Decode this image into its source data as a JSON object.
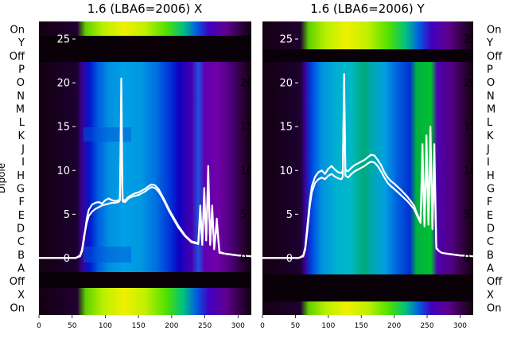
{
  "chart_data": [
    {
      "type": "heatmap",
      "title": "1.6 (LBA6=2006) X",
      "ylabel": "Dipole",
      "row_labels_bottom_to_top": [
        "On",
        "X",
        "Off",
        "A",
        "B",
        "C",
        "D",
        "E",
        "F",
        "G",
        "H",
        "I",
        "J",
        "K",
        "L",
        "M",
        "N",
        "O",
        "P",
        "Off",
        "Y",
        "On"
      ],
      "x_ticks": [
        0,
        50,
        100,
        150,
        200,
        250,
        300
      ],
      "xlim": [
        0,
        320
      ],
      "overlay_y_ticks": [
        0,
        5,
        10,
        15,
        20,
        25
      ],
      "overlay_ylim": [
        -6.5,
        27
      ],
      "overlay_lines": [
        {
          "x": [
            0,
            55,
            62,
            65,
            68,
            72,
            75,
            80,
            85,
            90,
            95,
            100,
            105,
            110,
            115,
            120,
            122,
            124,
            126,
            128,
            130,
            135,
            140,
            145,
            150,
            155,
            160,
            165,
            170,
            175,
            180,
            185,
            190,
            195,
            200,
            210,
            220,
            230,
            240,
            243,
            246,
            249,
            252,
            255,
            258,
            261,
            264,
            268,
            272,
            280,
            290,
            300,
            320
          ],
          "y": [
            0,
            0,
            0.3,
            1,
            2.5,
            4,
            4.8,
            5.3,
            5.6,
            5.8,
            6,
            6.1,
            6.2,
            6.3,
            6.3,
            6.4,
            6.6,
            20.5,
            6.5,
            6.4,
            6.4,
            6.8,
            7,
            7.1,
            7.2,
            7.4,
            7.6,
            7.9,
            8.1,
            8,
            7.6,
            7,
            6.3,
            5.5,
            4.8,
            3.5,
            2.5,
            1.8,
            1.6,
            6,
            1.5,
            8,
            2,
            10.5,
            1.5,
            6,
            1,
            4.5,
            0.6,
            0.5,
            0.4,
            0.3,
            0.2
          ]
        },
        {
          "x": [
            0,
            55,
            62,
            65,
            68,
            72,
            75,
            80,
            85,
            90,
            95,
            100,
            105,
            110,
            115,
            120,
            122,
            124,
            126,
            128,
            130,
            135,
            140,
            145,
            150,
            155,
            160,
            165,
            170,
            175,
            180,
            185,
            190,
            195,
            200,
            210,
            220,
            230,
            240,
            243,
            246,
            249,
            252,
            255,
            258,
            261,
            264,
            268,
            272,
            280,
            290,
            300,
            320
          ],
          "y": [
            0,
            0,
            0.2,
            0.8,
            2.2,
            4.5,
            5.5,
            6.1,
            6.3,
            6.4,
            6.2,
            6.6,
            6.8,
            6.6,
            6.5,
            6.6,
            6.8,
            17,
            6.7,
            6.6,
            6.6,
            7,
            7.2,
            7.4,
            7.5,
            7.7,
            7.9,
            8.2,
            8.4,
            8.3,
            7.9,
            7.2,
            6.5,
            5.7,
            5,
            3.7,
            2.6,
            1.9,
            1.7,
            5,
            1.6,
            7,
            2.1,
            9,
            1.6,
            5.5,
            1.1,
            4,
            0.7,
            0.5,
            0.4,
            0.3,
            0.2
          ]
        }
      ]
    },
    {
      "type": "heatmap",
      "title": "1.6 (LBA6=2006) Y",
      "row_labels_bottom_to_top": [
        "On",
        "X",
        "Off",
        "A",
        "B",
        "C",
        "D",
        "E",
        "F",
        "G",
        "H",
        "I",
        "J",
        "K",
        "L",
        "M",
        "N",
        "O",
        "P",
        "Off",
        "Y",
        "On"
      ],
      "x_ticks": [
        0,
        50,
        100,
        150,
        200,
        250,
        300
      ],
      "xlim": [
        0,
        320
      ],
      "overlay_y_ticks": [
        0,
        5,
        10,
        15,
        20,
        25
      ],
      "overlay_ylim": [
        -6.5,
        27
      ],
      "overlay_lines": [
        {
          "x": [
            0,
            55,
            62,
            65,
            68,
            72,
            75,
            80,
            85,
            90,
            95,
            100,
            105,
            110,
            115,
            120,
            122,
            124,
            126,
            128,
            130,
            135,
            140,
            145,
            150,
            155,
            160,
            165,
            170,
            175,
            180,
            185,
            190,
            195,
            200,
            210,
            220,
            230,
            235,
            240,
            243,
            246,
            249,
            252,
            255,
            258,
            261,
            264,
            268,
            272,
            280,
            290,
            300,
            320
          ],
          "y": [
            0,
            0,
            0.3,
            1.2,
            3.5,
            6.5,
            8.2,
            9.3,
            9.8,
            10,
            9.6,
            10.2,
            10.5,
            10.1,
            9.8,
            9.7,
            10,
            21,
            10.1,
            10,
            9.9,
            10.3,
            10.6,
            10.8,
            11,
            11.2,
            11.5,
            11.8,
            11.7,
            11.2,
            10.6,
            9.8,
            9.2,
            8.8,
            8.5,
            7.8,
            7,
            6,
            5,
            4.2,
            13,
            3.8,
            14,
            4,
            15,
            3.5,
            13,
            1.2,
            0.8,
            0.6,
            0.5,
            0.4,
            0.3,
            0.2
          ]
        },
        {
          "x": [
            0,
            55,
            62,
            65,
            68,
            72,
            75,
            80,
            85,
            90,
            95,
            100,
            105,
            110,
            115,
            120,
            122,
            124,
            126,
            128,
            130,
            135,
            140,
            145,
            150,
            155,
            160,
            165,
            170,
            175,
            180,
            185,
            190,
            195,
            200,
            210,
            220,
            230,
            235,
            240,
            243,
            246,
            249,
            252,
            255,
            258,
            261,
            264,
            268,
            272,
            280,
            290,
            300,
            320
          ],
          "y": [
            0,
            0,
            0.2,
            1,
            3,
            6,
            7.5,
            8.6,
            9,
            9.2,
            9,
            9.4,
            9.6,
            9.3,
            9.1,
            9,
            9.3,
            19,
            9.4,
            9.3,
            9.2,
            9.6,
            9.9,
            10.1,
            10.3,
            10.5,
            10.8,
            11,
            10.9,
            10.5,
            9.9,
            9.2,
            8.6,
            8.2,
            7.9,
            7.2,
            6.5,
            5.6,
            4.8,
            4,
            11,
            3.6,
            12,
            3.8,
            13.5,
            3.3,
            11,
            1.1,
            0.8,
            0.6,
            0.5,
            0.4,
            0.3,
            0.2
          ]
        }
      ]
    }
  ]
}
